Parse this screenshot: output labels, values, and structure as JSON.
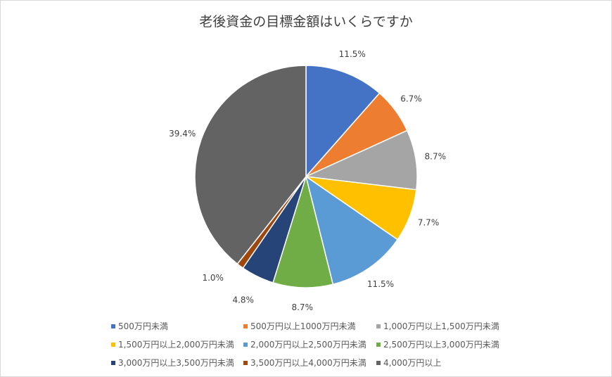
{
  "chart_data": {
    "type": "pie",
    "title": "老後資金の目標金額はいくらですか",
    "categories": [
      "500万円未満",
      "500万円以上1000万円未満",
      "1,000万円以上1,500万円未満",
      "1,500万円以上2,000万円未満",
      "2,000万円以上2,500万円未満",
      "2,500万円以上3,000万円未満",
      "3,000万円以上3,500万円未満",
      "3,500万円以上4,000万円未満",
      "4,000万円以上"
    ],
    "values": [
      11.5,
      6.7,
      8.7,
      7.7,
      11.5,
      8.7,
      4.8,
      1.0,
      39.4
    ],
    "labels": [
      "11.5%",
      "6.7%",
      "8.7%",
      "7.7%",
      "11.5%",
      "8.7%",
      "4.8%",
      "1.0%",
      "39.4%"
    ],
    "colors": [
      "#4472c4",
      "#ed7d31",
      "#a5a5a5",
      "#ffc000",
      "#5b9bd5",
      "#70ad47",
      "#264478",
      "#9e480e",
      "#636363"
    ],
    "legend_position": "bottom"
  }
}
